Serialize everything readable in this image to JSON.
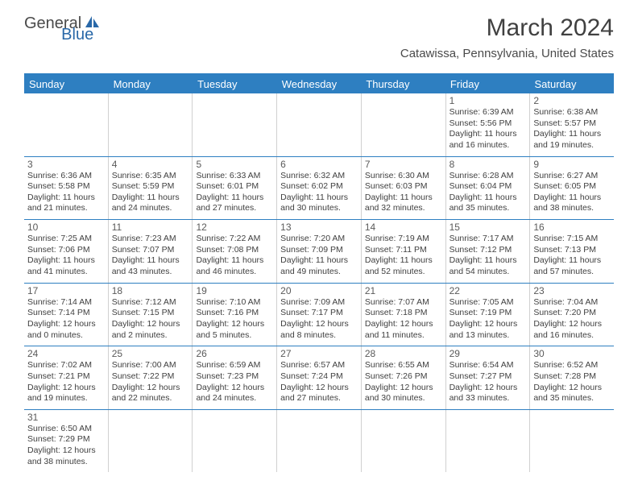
{
  "logo": {
    "general": "General",
    "blue": "Blue"
  },
  "title": "March 2024",
  "location": "Catawissa, Pennsylvania, United States",
  "colors": {
    "header_bg": "#2e7fc1",
    "header_text": "#ffffff",
    "border": "#2e7fc1",
    "cell_border": "#d0d0d0",
    "text": "#404040"
  },
  "day_headers": [
    "Sunday",
    "Monday",
    "Tuesday",
    "Wednesday",
    "Thursday",
    "Friday",
    "Saturday"
  ],
  "weeks": [
    [
      {
        "empty": true
      },
      {
        "empty": true
      },
      {
        "empty": true
      },
      {
        "empty": true
      },
      {
        "empty": true
      },
      {
        "num": "1",
        "sunrise": "Sunrise: 6:39 AM",
        "sunset": "Sunset: 5:56 PM",
        "daylight": "Daylight: 11 hours and 16 minutes."
      },
      {
        "num": "2",
        "sunrise": "Sunrise: 6:38 AM",
        "sunset": "Sunset: 5:57 PM",
        "daylight": "Daylight: 11 hours and 19 minutes."
      }
    ],
    [
      {
        "num": "3",
        "sunrise": "Sunrise: 6:36 AM",
        "sunset": "Sunset: 5:58 PM",
        "daylight": "Daylight: 11 hours and 21 minutes."
      },
      {
        "num": "4",
        "sunrise": "Sunrise: 6:35 AM",
        "sunset": "Sunset: 5:59 PM",
        "daylight": "Daylight: 11 hours and 24 minutes."
      },
      {
        "num": "5",
        "sunrise": "Sunrise: 6:33 AM",
        "sunset": "Sunset: 6:01 PM",
        "daylight": "Daylight: 11 hours and 27 minutes."
      },
      {
        "num": "6",
        "sunrise": "Sunrise: 6:32 AM",
        "sunset": "Sunset: 6:02 PM",
        "daylight": "Daylight: 11 hours and 30 minutes."
      },
      {
        "num": "7",
        "sunrise": "Sunrise: 6:30 AM",
        "sunset": "Sunset: 6:03 PM",
        "daylight": "Daylight: 11 hours and 32 minutes."
      },
      {
        "num": "8",
        "sunrise": "Sunrise: 6:28 AM",
        "sunset": "Sunset: 6:04 PM",
        "daylight": "Daylight: 11 hours and 35 minutes."
      },
      {
        "num": "9",
        "sunrise": "Sunrise: 6:27 AM",
        "sunset": "Sunset: 6:05 PM",
        "daylight": "Daylight: 11 hours and 38 minutes."
      }
    ],
    [
      {
        "num": "10",
        "sunrise": "Sunrise: 7:25 AM",
        "sunset": "Sunset: 7:06 PM",
        "daylight": "Daylight: 11 hours and 41 minutes."
      },
      {
        "num": "11",
        "sunrise": "Sunrise: 7:23 AM",
        "sunset": "Sunset: 7:07 PM",
        "daylight": "Daylight: 11 hours and 43 minutes."
      },
      {
        "num": "12",
        "sunrise": "Sunrise: 7:22 AM",
        "sunset": "Sunset: 7:08 PM",
        "daylight": "Daylight: 11 hours and 46 minutes."
      },
      {
        "num": "13",
        "sunrise": "Sunrise: 7:20 AM",
        "sunset": "Sunset: 7:09 PM",
        "daylight": "Daylight: 11 hours and 49 minutes."
      },
      {
        "num": "14",
        "sunrise": "Sunrise: 7:19 AM",
        "sunset": "Sunset: 7:11 PM",
        "daylight": "Daylight: 11 hours and 52 minutes."
      },
      {
        "num": "15",
        "sunrise": "Sunrise: 7:17 AM",
        "sunset": "Sunset: 7:12 PM",
        "daylight": "Daylight: 11 hours and 54 minutes."
      },
      {
        "num": "16",
        "sunrise": "Sunrise: 7:15 AM",
        "sunset": "Sunset: 7:13 PM",
        "daylight": "Daylight: 11 hours and 57 minutes."
      }
    ],
    [
      {
        "num": "17",
        "sunrise": "Sunrise: 7:14 AM",
        "sunset": "Sunset: 7:14 PM",
        "daylight": "Daylight: 12 hours and 0 minutes."
      },
      {
        "num": "18",
        "sunrise": "Sunrise: 7:12 AM",
        "sunset": "Sunset: 7:15 PM",
        "daylight": "Daylight: 12 hours and 2 minutes."
      },
      {
        "num": "19",
        "sunrise": "Sunrise: 7:10 AM",
        "sunset": "Sunset: 7:16 PM",
        "daylight": "Daylight: 12 hours and 5 minutes."
      },
      {
        "num": "20",
        "sunrise": "Sunrise: 7:09 AM",
        "sunset": "Sunset: 7:17 PM",
        "daylight": "Daylight: 12 hours and 8 minutes."
      },
      {
        "num": "21",
        "sunrise": "Sunrise: 7:07 AM",
        "sunset": "Sunset: 7:18 PM",
        "daylight": "Daylight: 12 hours and 11 minutes."
      },
      {
        "num": "22",
        "sunrise": "Sunrise: 7:05 AM",
        "sunset": "Sunset: 7:19 PM",
        "daylight": "Daylight: 12 hours and 13 minutes."
      },
      {
        "num": "23",
        "sunrise": "Sunrise: 7:04 AM",
        "sunset": "Sunset: 7:20 PM",
        "daylight": "Daylight: 12 hours and 16 minutes."
      }
    ],
    [
      {
        "num": "24",
        "sunrise": "Sunrise: 7:02 AM",
        "sunset": "Sunset: 7:21 PM",
        "daylight": "Daylight: 12 hours and 19 minutes."
      },
      {
        "num": "25",
        "sunrise": "Sunrise: 7:00 AM",
        "sunset": "Sunset: 7:22 PM",
        "daylight": "Daylight: 12 hours and 22 minutes."
      },
      {
        "num": "26",
        "sunrise": "Sunrise: 6:59 AM",
        "sunset": "Sunset: 7:23 PM",
        "daylight": "Daylight: 12 hours and 24 minutes."
      },
      {
        "num": "27",
        "sunrise": "Sunrise: 6:57 AM",
        "sunset": "Sunset: 7:24 PM",
        "daylight": "Daylight: 12 hours and 27 minutes."
      },
      {
        "num": "28",
        "sunrise": "Sunrise: 6:55 AM",
        "sunset": "Sunset: 7:26 PM",
        "daylight": "Daylight: 12 hours and 30 minutes."
      },
      {
        "num": "29",
        "sunrise": "Sunrise: 6:54 AM",
        "sunset": "Sunset: 7:27 PM",
        "daylight": "Daylight: 12 hours and 33 minutes."
      },
      {
        "num": "30",
        "sunrise": "Sunrise: 6:52 AM",
        "sunset": "Sunset: 7:28 PM",
        "daylight": "Daylight: 12 hours and 35 minutes."
      }
    ],
    [
      {
        "num": "31",
        "sunrise": "Sunrise: 6:50 AM",
        "sunset": "Sunset: 7:29 PM",
        "daylight": "Daylight: 12 hours and 38 minutes."
      },
      {
        "empty": true
      },
      {
        "empty": true
      },
      {
        "empty": true
      },
      {
        "empty": true
      },
      {
        "empty": true
      },
      {
        "empty": true
      }
    ]
  ]
}
